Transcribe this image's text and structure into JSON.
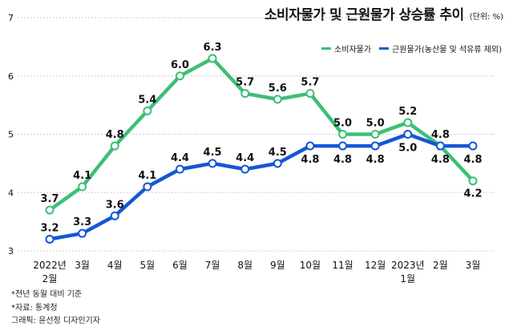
{
  "title": "소비자물가 및 근원물가 상승률 추이",
  "unit": "(단위: %)",
  "colors": {
    "consumer": "#3dbf77",
    "core": "#1456d6",
    "grid": "#cfcfcf",
    "text": "#111111"
  },
  "notes": [
    "*전년 동월 대비 기준",
    "*자료: 통계청",
    "그래픽: 윤선정 디자인기자"
  ],
  "chart_data": {
    "type": "line",
    "title": "소비자물가 및 근원물가 상승률 추이",
    "ylabel": "(단위: %)",
    "ylim": [
      3,
      7
    ],
    "yticks": [
      3,
      4,
      5,
      6,
      7
    ],
    "grid": true,
    "legend": "top-right",
    "categories": [
      {
        "line1": "2022년",
        "line2": "2월"
      },
      {
        "line1": "3월",
        "line2": ""
      },
      {
        "line1": "4월",
        "line2": ""
      },
      {
        "line1": "5월",
        "line2": ""
      },
      {
        "line1": "6월",
        "line2": ""
      },
      {
        "line1": "7월",
        "line2": ""
      },
      {
        "line1": "8월",
        "line2": ""
      },
      {
        "line1": "9월",
        "line2": ""
      },
      {
        "line1": "10월",
        "line2": ""
      },
      {
        "line1": "11월",
        "line2": ""
      },
      {
        "line1": "12월",
        "line2": ""
      },
      {
        "line1": "2023년",
        "line2": "1월"
      },
      {
        "line1": "2월",
        "line2": ""
      },
      {
        "line1": "3월",
        "line2": ""
      }
    ],
    "series": [
      {
        "name": "소비자물가",
        "key": "consumer",
        "values": [
          3.7,
          4.1,
          4.8,
          5.4,
          6.0,
          6.3,
          5.7,
          5.6,
          5.7,
          5.0,
          5.0,
          5.2,
          4.8,
          4.2
        ],
        "labels": [
          "3.7",
          "4.1",
          "4.8",
          "5.4",
          "6.0",
          "6.3",
          "5.7",
          "5.6",
          "5.7",
          "5.0",
          "5.0",
          "5.2",
          "4.8",
          "4.2"
        ]
      },
      {
        "name": "근원물가(농산물 및 석유류 제외)",
        "key": "core",
        "values": [
          3.2,
          3.3,
          3.6,
          4.1,
          4.4,
          4.5,
          4.4,
          4.5,
          4.8,
          4.8,
          4.8,
          5.0,
          4.8,
          4.8
        ],
        "labels": [
          "3.2",
          "3.3",
          "3.6",
          "4.1",
          "4.4",
          "4.5",
          "4.4",
          "4.5",
          "4.8",
          "4.8",
          "4.8",
          "5.0",
          "4.8",
          "4.8"
        ]
      }
    ]
  }
}
